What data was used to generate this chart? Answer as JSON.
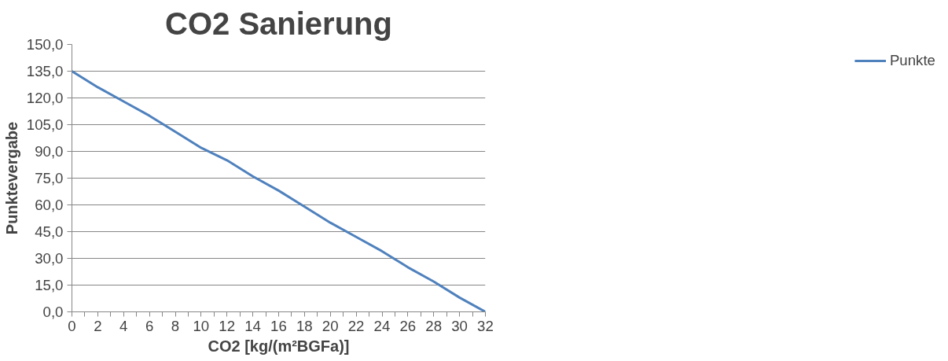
{
  "chart_data": {
    "type": "line",
    "title": "CO2 Sanierung",
    "xlabel": "CO2 [kg/(m²BGFa)]",
    "ylabel": "Punktevergabe",
    "x": [
      0,
      2,
      4,
      6,
      8,
      10,
      12,
      14,
      16,
      18,
      20,
      22,
      24,
      26,
      28,
      30,
      32
    ],
    "series": [
      {
        "name": "Punkte",
        "color": "#4f81bd",
        "values": [
          135,
          126,
          118,
          110,
          101,
          92,
          85,
          76,
          68,
          59,
          50,
          42,
          34,
          25,
          17,
          8,
          0
        ]
      }
    ],
    "xlim": [
      0,
      32
    ],
    "ylim": [
      0,
      150
    ],
    "xticks": [
      0,
      {
        "value": 1,
        "label": null
      },
      2,
      {
        "value": 3,
        "label": null
      },
      4,
      {
        "value": 5,
        "label": null
      },
      6,
      {
        "value": 7,
        "label": null
      },
      8,
      {
        "value": 9,
        "label": null
      },
      10,
      {
        "value": 11,
        "label": null
      },
      12,
      {
        "value": 13,
        "label": null
      },
      14,
      {
        "value": 15,
        "label": null
      },
      16,
      {
        "value": 17,
        "label": null
      },
      18,
      {
        "value": 19,
        "label": null
      },
      20,
      {
        "value": 21,
        "label": null
      },
      22,
      {
        "value": 23,
        "label": null
      },
      24,
      {
        "value": 25,
        "label": null
      },
      26,
      {
        "value": 27,
        "label": null
      },
      28,
      {
        "value": 29,
        "label": null
      },
      30,
      {
        "value": 31,
        "label": null
      },
      32
    ],
    "yticks": [
      {
        "value": 0,
        "label": "0,0"
      },
      {
        "value": 15,
        "label": "15,0"
      },
      {
        "value": 30,
        "label": "30,0"
      },
      {
        "value": 45,
        "label": "45,0"
      },
      {
        "value": 60,
        "label": "60,0"
      },
      {
        "value": 75,
        "label": "75,0"
      },
      {
        "value": 90,
        "label": "90,0"
      },
      {
        "value": 105,
        "label": "105,0"
      },
      {
        "value": 120,
        "label": "120,0"
      },
      {
        "value": 135,
        "label": "135,0"
      },
      {
        "value": 150,
        "label": "150,0"
      }
    ],
    "grid": "y",
    "legend": "right",
    "marker": "none",
    "line_style": "solid"
  }
}
